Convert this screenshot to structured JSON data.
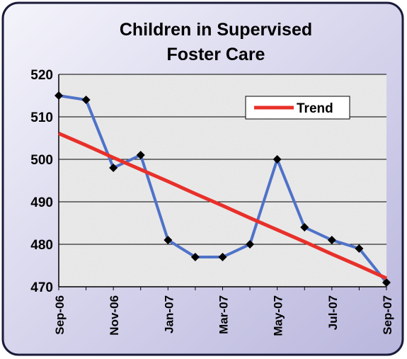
{
  "chart_data": {
    "type": "line",
    "title_lines": [
      "Children in Supervised",
      "Foster Care"
    ],
    "categories": [
      "Sep-06",
      null,
      "Nov-06",
      null,
      "Jan-07",
      null,
      "Mar-07",
      null,
      "May-07",
      null,
      "Jul-07",
      null,
      "Sep-07"
    ],
    "series": [
      {
        "color": "#4f72c8",
        "marker": "diamond",
        "marker_color": "#000000",
        "values": [
          515,
          514,
          498,
          501,
          481,
          477,
          477,
          480,
          500,
          484,
          481,
          479,
          471
        ]
      },
      {
        "name": "Trend",
        "color": "#e8302a",
        "values": [
          506.1,
          503.3,
          500.4,
          497.6,
          494.8,
          491.9,
          489.1,
          486.2,
          483.4,
          480.6,
          477.7,
          474.9,
          472.0
        ]
      }
    ],
    "ylim": [
      470,
      520
    ],
    "yticks": [
      470,
      480,
      490,
      500,
      510,
      520
    ],
    "grid": true,
    "legend": "upper right"
  }
}
